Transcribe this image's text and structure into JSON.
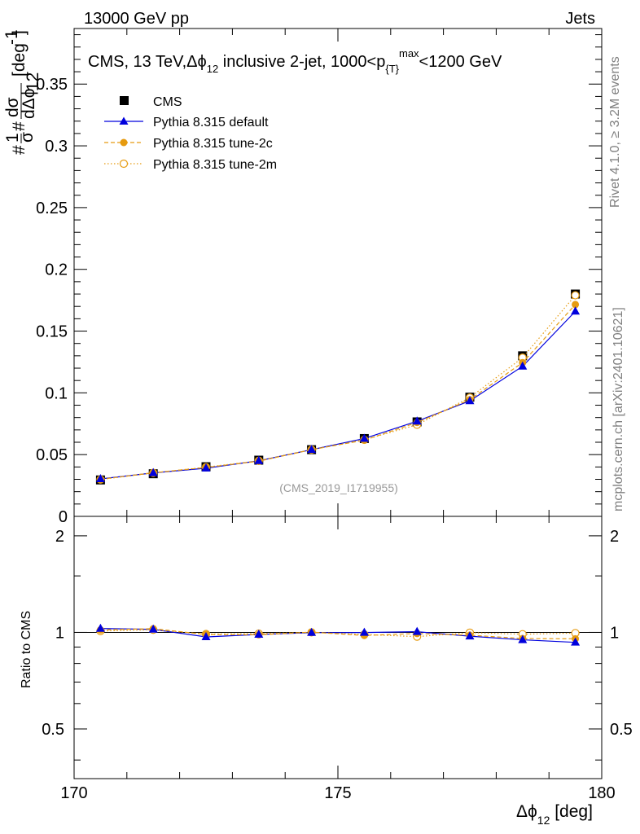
{
  "header": {
    "left": "13000 GeV pp",
    "right": "Jets"
  },
  "side_labels": {
    "rivet": "Rivet 4.1.0, ≥ 3.2M events",
    "mcplots": "mcplots.cern.ch [arXiv:2401.10621]"
  },
  "reference": "(CMS_2019_I1719955)",
  "plot_title": {
    "main": "CMS, 13 TeV,Δϕ",
    "sub12": "12",
    "rest": " inclusive 2-jet, 1000<p",
    "subT": "{T}",
    "supmax": "max",
    "end": "<1200 GeV"
  },
  "y_label": {
    "prefix": "#",
    "frac_num": "1",
    "frac_den": "σ",
    "mid": "#",
    "d_num": "dσ",
    "d_den": "dΔϕ",
    "sub": "12",
    "unit": "[deg",
    "unit_sup": "-1",
    "unit_end": "]"
  },
  "x_label": {
    "main": "Δϕ",
    "sub": "12",
    "unit": " [deg]"
  },
  "ratio_label": "Ratio to CMS",
  "colors": {
    "cms": "#000000",
    "default": "#0000dd",
    "tune2c": "#e69b10",
    "tune2m": "#e69b10",
    "side": "#808080",
    "ref": "#999999"
  },
  "chart_data": {
    "type": "line",
    "title": "CMS, 13 TeV, Δϕ_12 inclusive 2-jet, 1000<p_T^max<1200 GeV",
    "xlabel": "Δϕ_12 [deg]",
    "ylabel": "1/σ dσ/dΔϕ_12 [deg^-1]",
    "xlim": [
      170,
      180
    ],
    "ylim": [
      0,
      0.395
    ],
    "ratio_ylim": [
      0.35,
      2.3
    ],
    "x_ticks": [
      "170",
      "175",
      "180"
    ],
    "y_ticks": [
      "0",
      "0.05",
      "0.1",
      "0.15",
      "0.2",
      "0.25",
      "0.3",
      "0.35"
    ],
    "ratio_ticks": [
      "0.5",
      "1",
      "2"
    ],
    "x": [
      170.5,
      171.5,
      172.5,
      173.5,
      174.5,
      175.5,
      176.5,
      177.5,
      178.5,
      179.5
    ],
    "series": [
      {
        "name": "CMS",
        "style": "square",
        "values": [
          0.0295,
          0.0345,
          0.0402,
          0.0455,
          0.054,
          0.063,
          0.0765,
          0.0965,
          0.13,
          0.18
        ]
      },
      {
        "name": "Pythia 8.315 default",
        "style": "triangle",
        "values": [
          0.0303,
          0.0352,
          0.039,
          0.045,
          0.054,
          0.063,
          0.077,
          0.0935,
          0.1215,
          0.166
        ]
      },
      {
        "name": "Pythia 8.315 tune-2c",
        "style": "dot",
        "values": [
          0.03,
          0.0353,
          0.0396,
          0.0447,
          0.054,
          0.0617,
          0.076,
          0.0945,
          0.1245,
          0.1715
        ]
      },
      {
        "name": "Pythia 8.315 tune-2m",
        "style": "circle",
        "values": [
          0.0298,
          0.0352,
          0.0398,
          0.045,
          0.054,
          0.062,
          0.0742,
          0.0962,
          0.1285,
          0.179
        ]
      }
    ],
    "ratios": [
      {
        "name": "Pythia 8.315 default",
        "values": [
          1.028,
          1.022,
          0.968,
          0.985,
          0.998,
          0.999,
          1.005,
          0.973,
          0.948,
          0.931
        ]
      },
      {
        "name": "Pythia 8.315 tune-2c",
        "values": [
          1.018,
          1.027,
          0.985,
          0.983,
          1.002,
          0.978,
          0.992,
          0.98,
          0.957,
          0.955
        ]
      },
      {
        "name": "Pythia 8.315 tune-2m",
        "values": [
          1.01,
          1.019,
          0.988,
          0.991,
          1.0,
          0.985,
          0.97,
          0.998,
          0.987,
          0.995
        ]
      }
    ]
  }
}
